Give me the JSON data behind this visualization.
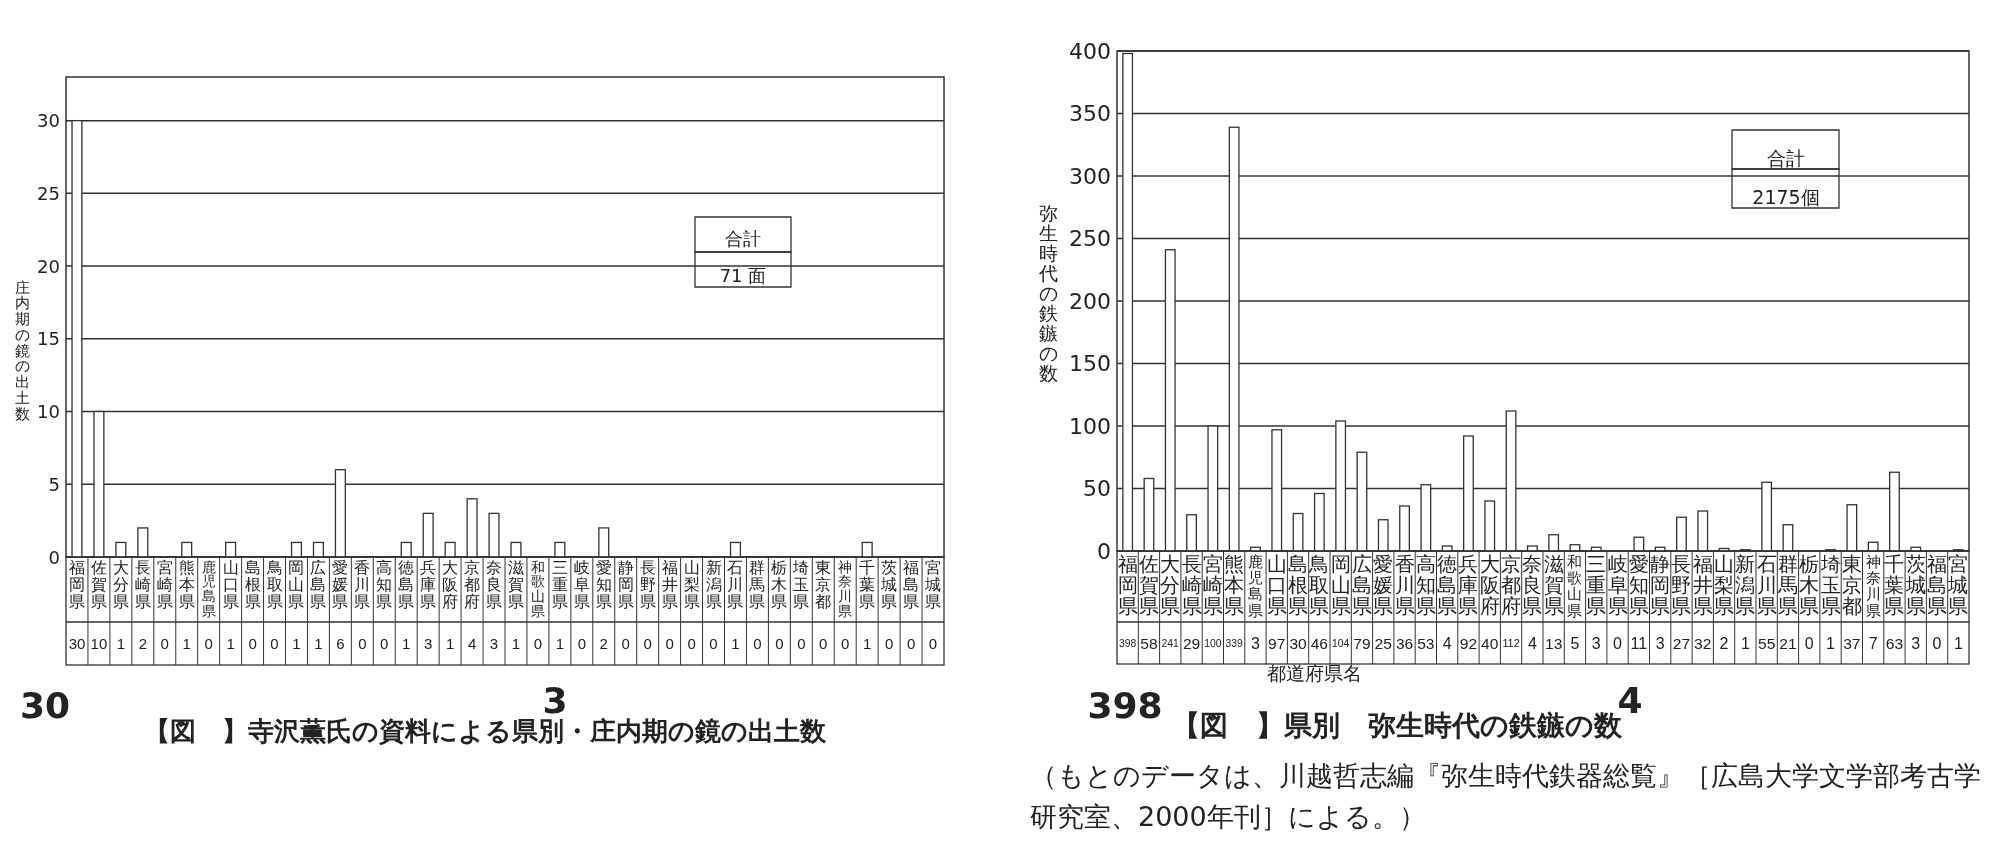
{
  "chart_data": [
    {
      "type": "bar",
      "title": "【図　】寺沢薫氏の資料による県別・庄内期の鏡の出土数",
      "ylabel": "庄内期の鏡の出土数",
      "categories": [
        "福岡県",
        "佐賀県",
        "大分県",
        "長崎県",
        "宮崎県",
        "熊本県",
        "鹿児島県",
        "山口県",
        "島根県",
        "鳥取県",
        "岡山県",
        "広島県",
        "愛媛県",
        "香川県",
        "高知県",
        "徳島県",
        "兵庫県",
        "大阪府",
        "京都府",
        "奈良県",
        "滋賀県",
        "和歌山県",
        "三重県",
        "岐阜県",
        "愛知県",
        "静岡県",
        "長野県",
        "福井県",
        "山梨県",
        "新潟県",
        "石川県",
        "群馬県",
        "栃木県",
        "埼玉県",
        "東京都",
        "神奈川県",
        "千葉県",
        "茨城県",
        "福島県",
        "宮城県"
      ],
      "values": [
        30,
        10,
        1,
        2,
        0,
        1,
        0,
        1,
        0,
        0,
        1,
        1,
        6,
        0,
        0,
        1,
        3,
        1,
        4,
        3,
        1,
        0,
        1,
        0,
        2,
        0,
        0,
        0,
        0,
        0,
        1,
        0,
        0,
        0,
        0,
        0,
        1,
        0,
        0,
        0
      ],
      "color": "#ffffff",
      "ylim": [
        0,
        33
      ],
      "yticks": [
        0,
        5,
        10,
        15,
        20,
        25,
        30
      ],
      "grid": "y",
      "data_labels": true,
      "annotations": [
        "合計",
        "71 面",
        "30",
        "3"
      ]
    },
    {
      "type": "bar",
      "title": "【図　】県別　弥生時代の鉄鏃の数",
      "ylabel": "弥生時代の鉄鏃の数",
      "xlabel": "都道府県名",
      "categories": [
        "福岡県",
        "佐賀県",
        "大分県",
        "長崎県",
        "宮崎県",
        "熊本県",
        "鹿児島県",
        "山口県",
        "島根県",
        "鳥取県",
        "岡山県",
        "広島県",
        "愛媛県",
        "香川県",
        "高知県",
        "徳島県",
        "兵庫県",
        "大阪府",
        "京都府",
        "奈良県",
        "滋賀県",
        "和歌山県",
        "三重県",
        "岐阜県",
        "愛知県",
        "静岡県",
        "長野県",
        "福井県",
        "山梨県",
        "新潟県",
        "石川県",
        "群馬県",
        "栃木県",
        "埼玉県",
        "東京都",
        "神奈川県",
        "千葉県",
        "茨城県",
        "福島県",
        "宮城県"
      ],
      "values": [
        398,
        58,
        241,
        29,
        100,
        339,
        3,
        97,
        30,
        46,
        104,
        79,
        25,
        36,
        53,
        4,
        92,
        40,
        112,
        4,
        13,
        5,
        3,
        0,
        11,
        3,
        27,
        32,
        2,
        1,
        55,
        21,
        0,
        1,
        37,
        7,
        63,
        3,
        0,
        1
      ],
      "color": "#ffffff",
      "ylim": [
        0,
        400
      ],
      "yticks": [
        0,
        50,
        100,
        150,
        200,
        250,
        300,
        350,
        400
      ],
      "grid": "y",
      "data_labels": true,
      "annotations": [
        "合計",
        "2175個",
        "398",
        "4",
        "（もとのデータは、川越哲志編『弥生時代鉄器総覧』［広島大学文学部考古学研究室、2000年刊］による。）"
      ]
    }
  ]
}
